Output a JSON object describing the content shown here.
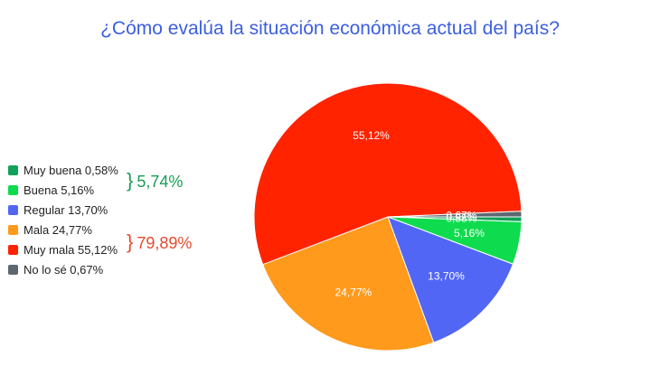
{
  "chart_data": {
    "type": "pie",
    "title": "¿Cómo evalúa la situación económica actual del país?",
    "slices": [
      {
        "name": "Muy buena",
        "legend": "Muy buena 0,58%",
        "value": 0.58,
        "label": "0,58%",
        "color": "#11a15a"
      },
      {
        "name": "Buena",
        "legend": "Buena 5,16%",
        "value": 5.16,
        "label": "5,16%",
        "color": "#0fdb4e"
      },
      {
        "name": "Regular",
        "legend": "Regular 13,70%",
        "value": 13.7,
        "label": "13,70%",
        "color": "#5266f5"
      },
      {
        "name": "Mala",
        "legend": "Mala 24,77%",
        "value": 24.77,
        "label": "24,77%",
        "color": "#ff9a1c"
      },
      {
        "name": "Muy mala",
        "legend": "Muy mala 55,12%",
        "value": 55.12,
        "label": "55,12%",
        "color": "#ff2300"
      },
      {
        "name": "No lo sé",
        "legend": "No lo sé 0,67%",
        "value": 0.67,
        "label": "0,67%",
        "color": "#5c6770"
      }
    ],
    "groups": [
      {
        "label": "5,74%",
        "color": "#1a9d56"
      },
      {
        "label": "79,89%",
        "color": "#e84a2e"
      }
    ],
    "legend_position": "left"
  }
}
